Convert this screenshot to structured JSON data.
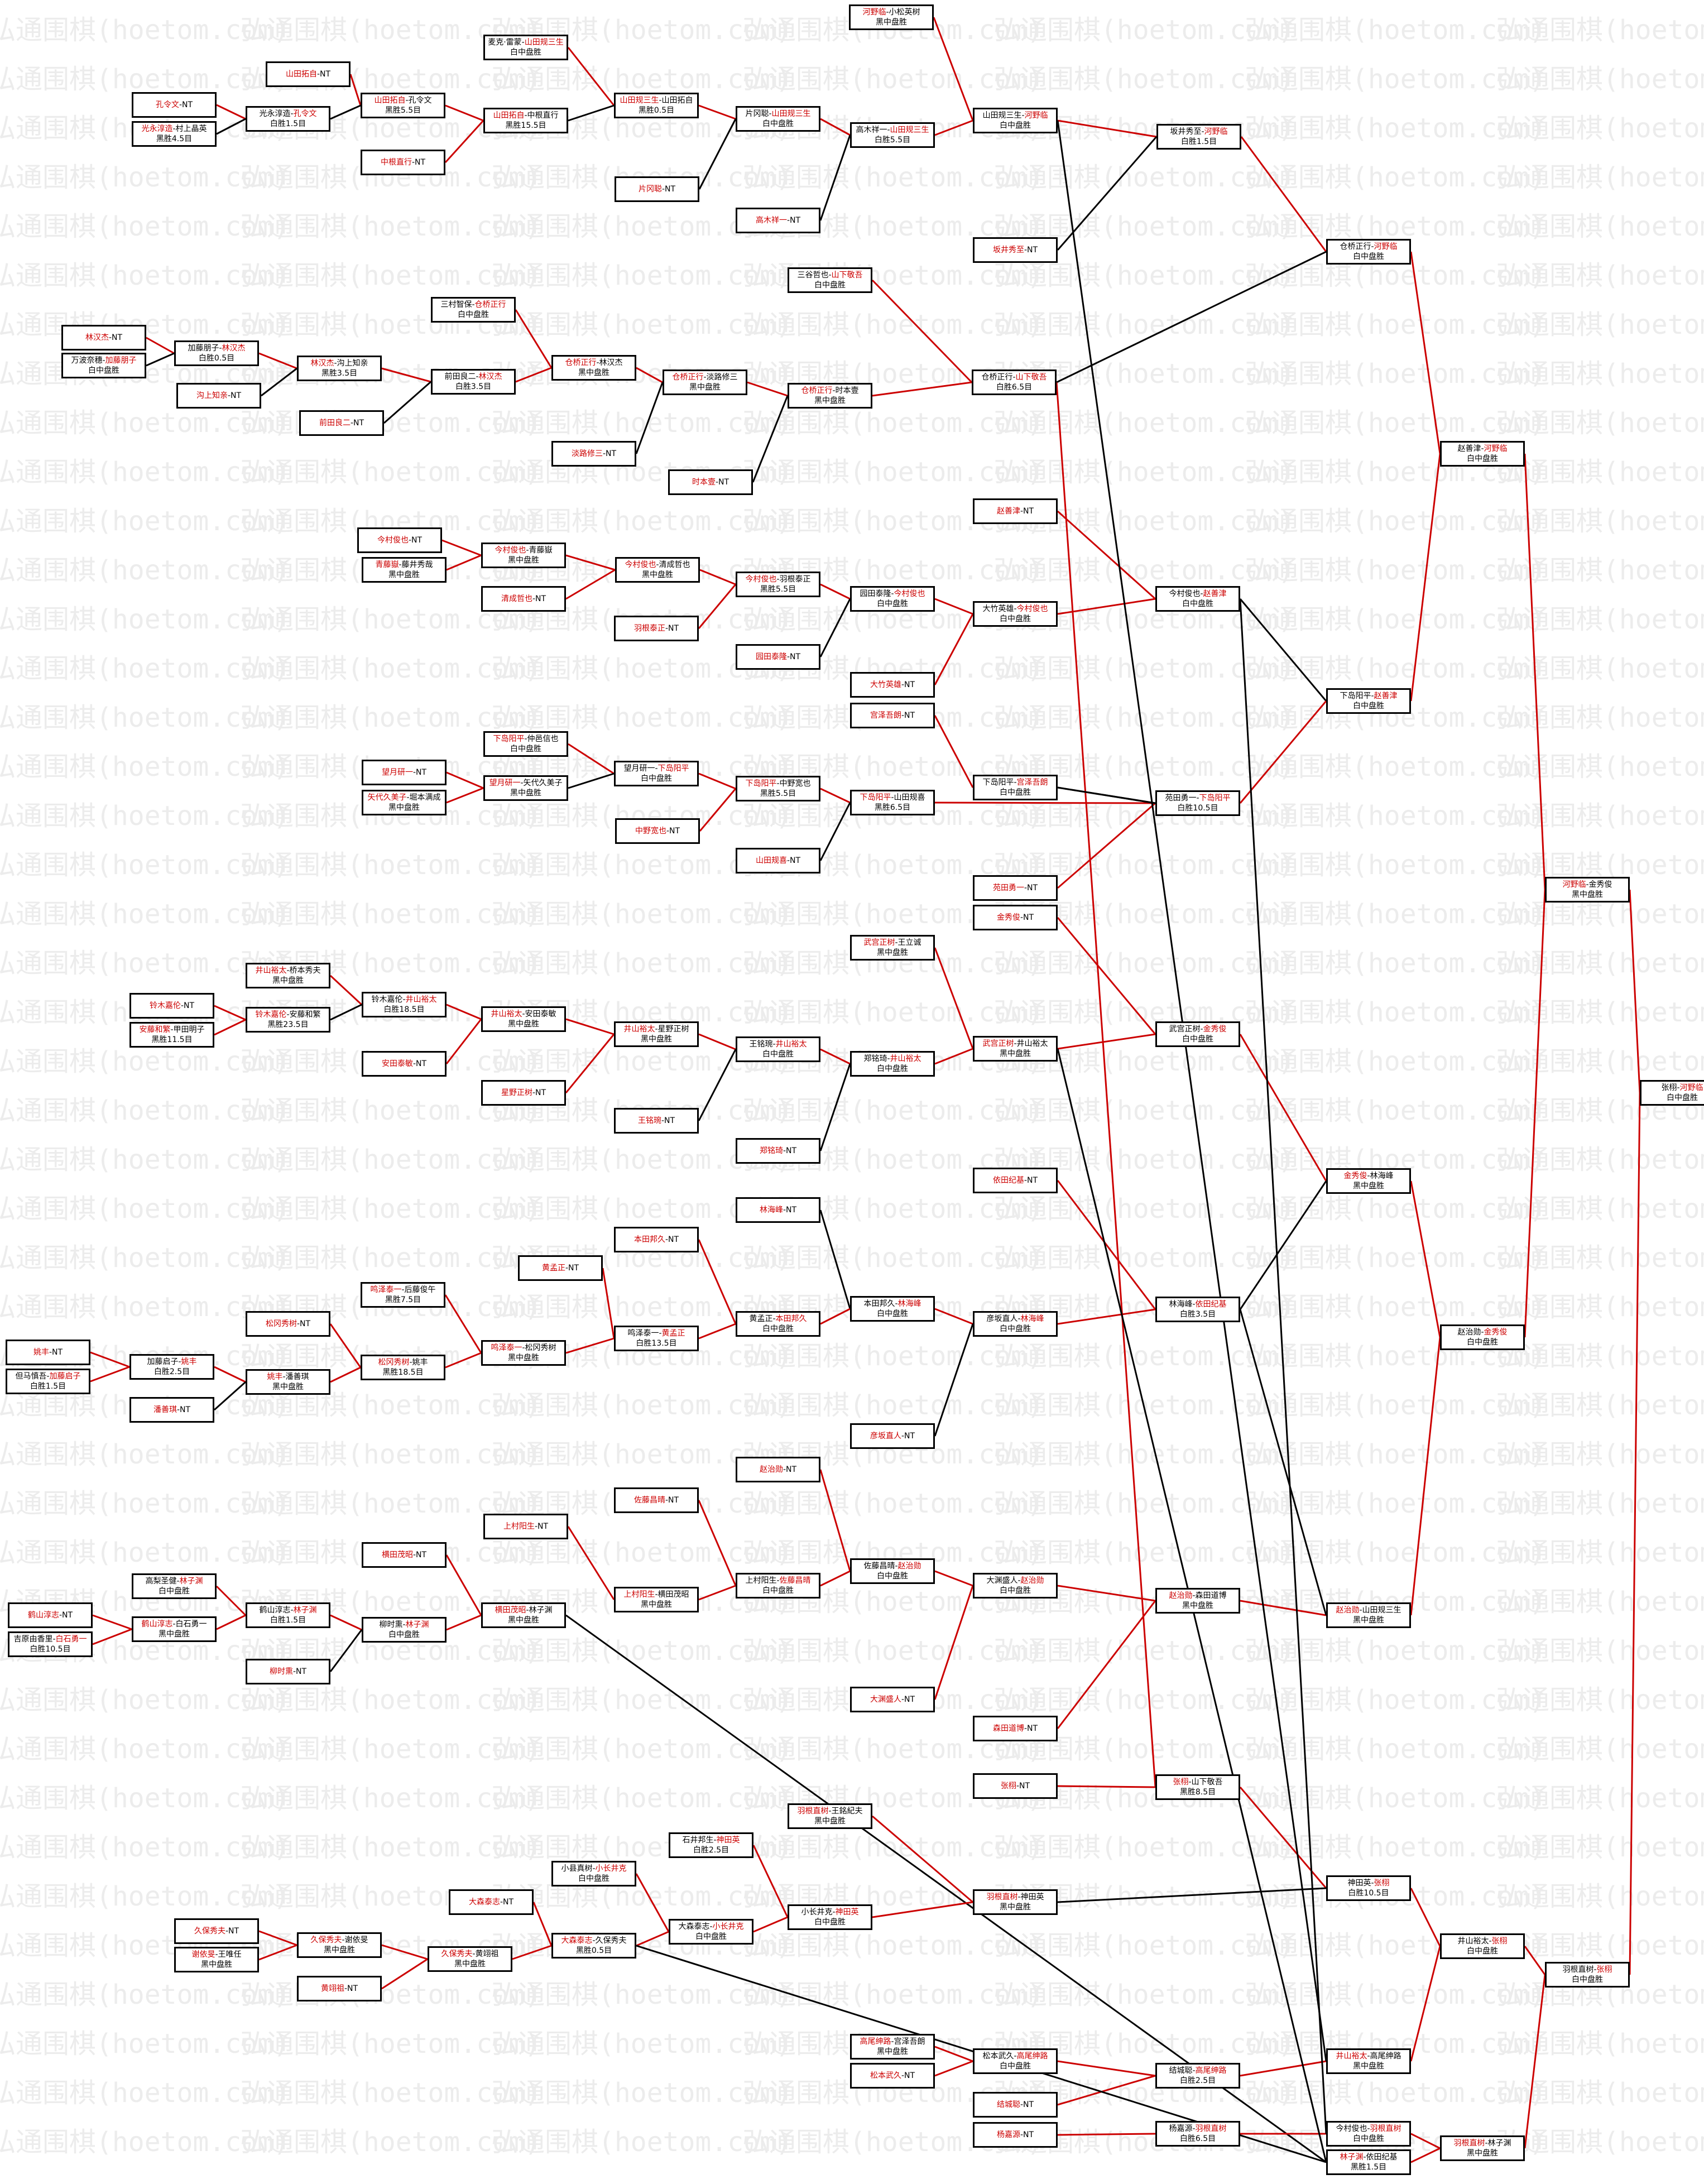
{
  "watermark": "弘通围棋(hoetom.com)",
  "colors": {
    "winner": "#cc0000",
    "line_win": "#cc0000",
    "line_loss": "#000000",
    "border": "#000000"
  },
  "nodes": [
    {
      "id": "a1",
      "l1": "孔令文-NT",
      "hl": "孔令文"
    },
    {
      "id": "a2",
      "l1": "光永淳造-村上晶英",
      "l2": "黑胜4.5目",
      "hl": "光永淳造"
    },
    {
      "id": "a3",
      "l1": "山田拓自-NT",
      "hl": "山田拓自"
    },
    {
      "id": "a4",
      "l1": "光永淳造-孔令文",
      "l2": "白胜1.5目",
      "hl": "孔令文"
    },
    {
      "id": "a5",
      "l1": "中根直行-NT",
      "hl": "中根直行"
    },
    {
      "id": "a6",
      "l1": "山田拓自-孔令文",
      "l2": "黑胜5.5目",
      "hl": "山田拓自"
    },
    {
      "id": "a7",
      "l1": "麦克·雷蒙-山田规三生",
      "l2": "白中盘胜",
      "hl": "山田规三生"
    },
    {
      "id": "a8",
      "l1": "山田拓自-中根直行",
      "l2": "黑胜15.5目",
      "hl": "山田拓自"
    },
    {
      "id": "a9",
      "l1": "山田规三生-山田拓自",
      "l2": "黑胜0.5目",
      "hl": "山田规三生"
    },
    {
      "id": "a10",
      "l1": "片冈聪-NT",
      "hl": "片冈聪"
    },
    {
      "id": "a11",
      "l1": "片冈聪-山田规三生",
      "l2": "白中盘胜",
      "hl": "山田规三生"
    },
    {
      "id": "a12",
      "l1": "高木祥一-NT",
      "hl": "高木祥一"
    },
    {
      "id": "a13",
      "l1": "河野临-小松英树",
      "l2": "黑中盘胜",
      "hl": "河野临"
    },
    {
      "id": "a14",
      "l1": "高木祥一-山田规三生",
      "l2": "白胜5.5目",
      "hl": "山田规三生"
    },
    {
      "id": "a15",
      "l1": "山田规三生-河野临",
      "l2": "白中盘胜",
      "hl": "河野临"
    },
    {
      "id": "a16",
      "l1": "坂井秀至-NT",
      "hl": "坂井秀至"
    },
    {
      "id": "a17",
      "l1": "坂井秀至-河野临",
      "l2": "白胜1.5目",
      "hl": "河野临"
    },
    {
      "id": "b1",
      "l1": "林汉杰-NT",
      "hl": "林汉杰"
    },
    {
      "id": "b2",
      "l1": "万波奈穗-加藤朋子",
      "l2": "白中盘胜",
      "hl": "加藤朋子"
    },
    {
      "id": "b3",
      "l1": "加藤朋子-林汉杰",
      "l2": "白胜0.5目",
      "hl": "林汉杰"
    },
    {
      "id": "b4",
      "l1": "沟上知亲-NT",
      "hl": "沟上知亲"
    },
    {
      "id": "b5",
      "l1": "林汉杰-沟上知亲",
      "l2": "黑胜3.5目",
      "hl": "林汉杰"
    },
    {
      "id": "b6",
      "l1": "前田良二-NT",
      "hl": "前田良二"
    },
    {
      "id": "b7",
      "l1": "三村智保-仓桥正行",
      "l2": "白中盘胜",
      "hl": "仓桥正行"
    },
    {
      "id": "b8",
      "l1": "前田良二-林汉杰",
      "l2": "白胜3.5目",
      "hl": "林汉杰"
    },
    {
      "id": "b9",
      "l1": "仓桥正行-林汉杰",
      "l2": "黑中盘胜",
      "hl": "仓桥正行"
    },
    {
      "id": "b10",
      "l1": "淡路修三-NT",
      "hl": "淡路修三"
    },
    {
      "id": "b11",
      "l1": "仓桥正行-淡路修三",
      "l2": "黑中盘胜",
      "hl": "仓桥正行"
    },
    {
      "id": "b12",
      "l1": "时本壹-NT",
      "hl": "时本壹"
    },
    {
      "id": "b13",
      "l1": "三谷哲也-山下敬吾",
      "l2": "白中盘胜",
      "hl": "山下敬吾"
    },
    {
      "id": "b14",
      "l1": "仓桥正行-时本壹",
      "l2": "黑中盘胜",
      "hl": "仓桥正行"
    },
    {
      "id": "b15",
      "l1": "仓桥正行-山下敬吾",
      "l2": "白胜6.5目",
      "hl": "山下敬吾"
    },
    {
      "id": "b16",
      "l1": "仓桥正行-河野临",
      "l2": "白中盘胜",
      "hl": "河野临"
    },
    {
      "id": "c1",
      "l1": "今村俊也-NT",
      "hl": "今村俊也"
    },
    {
      "id": "c2",
      "l1": "青藤嶽-藤井秀哉",
      "l2": "黑中盘胜",
      "hl": "青藤嶽"
    },
    {
      "id": "c3",
      "l1": "今村俊也-青藤嶽",
      "l2": "黑中盘胜",
      "hl": "今村俊也"
    },
    {
      "id": "c4",
      "l1": "清成哲也-NT",
      "hl": "清成哲也"
    },
    {
      "id": "c5",
      "l1": "今村俊也-清成哲也",
      "l2": "黑中盘胜",
      "hl": "今村俊也"
    },
    {
      "id": "c6",
      "l1": "羽根泰正-NT",
      "hl": "羽根泰正"
    },
    {
      "id": "c7",
      "l1": "今村俊也-羽根泰正",
      "l2": "黑胜5.5目",
      "hl": "今村俊也"
    },
    {
      "id": "c8",
      "l1": "园田泰隆-NT",
      "hl": "园田泰隆"
    },
    {
      "id": "c9",
      "l1": "园田泰隆-今村俊也",
      "l2": "白中盘胜",
      "hl": "今村俊也"
    },
    {
      "id": "c10",
      "l1": "赵善津-NT",
      "hl": "赵善津"
    },
    {
      "id": "c11",
      "l1": "大竹英雄-今村俊也",
      "l2": "白中盘胜",
      "hl": "今村俊也"
    },
    {
      "id": "c12",
      "l1": "大竹英雄-NT",
      "hl": "大竹英雄"
    },
    {
      "id": "c13",
      "l1": "今村俊也-赵善津",
      "l2": "白中盘胜",
      "hl": "赵善津"
    },
    {
      "id": "c14",
      "l1": "宫泽吾朗-NT",
      "hl": "宫泽吾朗"
    },
    {
      "id": "d1",
      "l1": "下岛阳平-仲邑信也",
      "l2": "白中盘胜",
      "hl": "下岛阳平"
    },
    {
      "id": "d2",
      "l1": "望月研一-NT",
      "hl": "望月研一"
    },
    {
      "id": "d3",
      "l1": "矢代久美子-堀本满成",
      "l2": "黑中盘胜",
      "hl": "矢代久美子"
    },
    {
      "id": "d4",
      "l1": "望月研一-矢代久美子",
      "l2": "黑中盘胜",
      "hl": "望月研一"
    },
    {
      "id": "d5",
      "l1": "望月研一-下岛阳平",
      "l2": "白中盘胜",
      "hl": "下岛阳平"
    },
    {
      "id": "d6",
      "l1": "中野宽也-NT",
      "hl": "中野宽也"
    },
    {
      "id": "d7",
      "l1": "下岛阳平-中野宽也",
      "l2": "黑胜5.5目",
      "hl": "下岛阳平"
    },
    {
      "id": "d8",
      "l1": "山田规喜-NT",
      "hl": "山田规喜"
    },
    {
      "id": "d9",
      "l1": "下岛阳平-山田规喜",
      "l2": "黑胜6.5目",
      "hl": "下岛阳平"
    },
    {
      "id": "d10",
      "l1": "下岛阳平-宫泽吾朗",
      "l2": "白中盘胜",
      "hl": "宫泽吾朗"
    },
    {
      "id": "d11",
      "l1": "苑田勇一-NT",
      "hl": "苑田勇一"
    },
    {
      "id": "d12",
      "l1": "苑田勇一-下岛阳平",
      "l2": "白胜10.5目",
      "hl": "下岛阳平"
    },
    {
      "id": "d13",
      "l1": "下岛阳平-赵善津",
      "l2": "白中盘胜",
      "hl": "赵善津"
    },
    {
      "id": "d14",
      "l1": "赵善津-河野临",
      "l2": "白中盘胜",
      "hl": "河野临"
    },
    {
      "id": "d15",
      "l1": "金秀俊-NT",
      "hl": "金秀俊"
    },
    {
      "id": "e1",
      "l1": "井山裕太-桥本秀夫",
      "l2": "黑中盘胜",
      "hl": "井山裕太"
    },
    {
      "id": "e2",
      "l1": "铃木嘉伦-NT",
      "hl": "铃木嘉伦"
    },
    {
      "id": "e3",
      "l1": "安藤和繁-甲田明子",
      "l2": "黑胜11.5目",
      "hl": "安藤和繁"
    },
    {
      "id": "e4",
      "l1": "铃木嘉伦-安藤和繁",
      "l2": "黑胜23.5目",
      "hl": "铃木嘉伦"
    },
    {
      "id": "e5",
      "l1": "铃木嘉伦-井山裕太",
      "l2": "白胜18.5目",
      "hl": "井山裕太"
    },
    {
      "id": "e6",
      "l1": "井山裕太-安田泰敏",
      "l2": "黑中盘胜",
      "hl": "井山裕太"
    },
    {
      "id": "e7",
      "l1": "安田泰敏-NT",
      "hl": "安田泰敏"
    },
    {
      "id": "e8",
      "l1": "井山裕太-星野正树",
      "l2": "黑中盘胜",
      "hl": "井山裕太"
    },
    {
      "id": "e9",
      "l1": "星野正树-NT",
      "hl": "星野正树"
    },
    {
      "id": "e10",
      "l1": "王铭琬-井山裕太",
      "l2": "白中盘胜",
      "hl": "井山裕太"
    },
    {
      "id": "e11",
      "l1": "王铭琬-NT",
      "hl": "王铭琬"
    },
    {
      "id": "e12",
      "l1": "武宫正树-王立诚",
      "l2": "黑中盘胜",
      "hl": "武宫正树"
    },
    {
      "id": "e13",
      "l1": "郑铭琦-井山裕太",
      "l2": "白中盘胜",
      "hl": "井山裕太"
    },
    {
      "id": "e14",
      "l1": "郑铭琦-NT",
      "hl": "郑铭琦"
    },
    {
      "id": "e15",
      "l1": "武宫正树-井山裕太",
      "l2": "黑中盘胜",
      "hl": "武宫正树"
    },
    {
      "id": "e16",
      "l1": "武宫正树-金秀俊",
      "l2": "白中盘胜",
      "hl": "金秀俊"
    },
    {
      "id": "e17",
      "l1": "依田纪基-NT",
      "hl": "依田纪基"
    },
    {
      "id": "e18",
      "l1": "金秀俊-林海峰",
      "l2": "黑中盘胜",
      "hl": "金秀俊"
    },
    {
      "id": "e19",
      "l1": "赵治勋-金秀俊",
      "l2": "白中盘胜",
      "hl": "金秀俊"
    },
    {
      "id": "e20",
      "l1": "河野临-金秀俊",
      "l2": "黑中盘胜",
      "hl": "河野临"
    },
    {
      "id": "e21",
      "l1": "张栩-河野临",
      "l2": "白中盘胜",
      "hl": "河野临"
    },
    {
      "id": "f1",
      "l1": "林海峰-NT",
      "hl": "林海峰"
    },
    {
      "id": "f2",
      "l1": "本田邦久-NT",
      "hl": "本田邦久"
    },
    {
      "id": "f3",
      "l1": "黄孟正-NT",
      "hl": "黄孟正"
    },
    {
      "id": "f4",
      "l1": "鸣泽泰一-后藤俊午",
      "l2": "黑胜7.5目",
      "hl": "鸣泽泰一"
    },
    {
      "id": "f5",
      "l1": "松冈秀树-NT",
      "hl": "松冈秀树"
    },
    {
      "id": "f6",
      "l1": "姚丰-NT",
      "hl": "姚丰"
    },
    {
      "id": "f7",
      "l1": "加藤启子-姚丰",
      "l2": "白胜2.5目",
      "hl": "姚丰"
    },
    {
      "id": "f8",
      "l1": "但马慎吾-加藤启子",
      "l2": "白胜1.5目",
      "hl": "加藤启子"
    },
    {
      "id": "f9",
      "l1": "姚丰-潘善琪",
      "l2": "黑中盘胜",
      "hl": "姚丰"
    },
    {
      "id": "f10",
      "l1": "潘善琪-NT",
      "hl": "潘善琪"
    },
    {
      "id": "f11",
      "l1": "松冈秀树-姚丰",
      "l2": "黑胜18.5目",
      "hl": "松冈秀树"
    },
    {
      "id": "f12",
      "l1": "鸣泽泰一-松冈秀树",
      "l2": "黑中盘胜",
      "hl": "鸣泽泰一"
    },
    {
      "id": "f13",
      "l1": "鸣泽泰一-黄孟正",
      "l2": "白胜13.5目",
      "hl": "黄孟正"
    },
    {
      "id": "f14",
      "l1": "黄孟正-本田邦久",
      "l2": "白中盘胜",
      "hl": "本田邦久"
    },
    {
      "id": "f15",
      "l1": "本田邦久-林海峰",
      "l2": "白中盘胜",
      "hl": "林海峰"
    },
    {
      "id": "f16",
      "l1": "彦坂直人-林海峰",
      "l2": "白中盘胜",
      "hl": "林海峰"
    },
    {
      "id": "f17",
      "l1": "彦坂直人-NT",
      "hl": "彦坂直人"
    },
    {
      "id": "f18",
      "l1": "林海峰-依田纪基",
      "l2": "白胜3.5目",
      "hl": "依田纪基"
    },
    {
      "id": "g1",
      "l1": "赵治勋-NT",
      "hl": "赵治勋"
    },
    {
      "id": "g2",
      "l1": "佐藤昌晴-NT",
      "hl": "佐藤昌晴"
    },
    {
      "id": "g3",
      "l1": "上村阳生-NT",
      "hl": "上村阳生"
    },
    {
      "id": "g4",
      "l1": "横田茂昭-NT",
      "hl": "横田茂昭"
    },
    {
      "id": "g5",
      "l1": "上村阳生-横田茂昭",
      "l2": "黑中盘胜",
      "hl": "上村阳生"
    },
    {
      "id": "g6",
      "l1": "上村阳生-佐藤昌晴",
      "l2": "白中盘胜",
      "hl": "佐藤昌晴"
    },
    {
      "id": "g7",
      "l1": "佐藤昌晴-赵治勋",
      "l2": "白中盘胜",
      "hl": "赵治勋"
    },
    {
      "id": "g8",
      "l1": "大渊盛人-赵治勋",
      "l2": "白中盘胜",
      "hl": "赵治勋"
    },
    {
      "id": "g9",
      "l1": "大渊盛人-NT",
      "hl": "大渊盛人"
    },
    {
      "id": "g10",
      "l1": "森田道博-NT",
      "hl": "森田道博"
    },
    {
      "id": "g11",
      "l1": "赵治勋-森田道博",
      "l2": "黑中盘胜",
      "hl": "赵治勋"
    },
    {
      "id": "g12",
      "l1": "赵治勋-山田规三生",
      "l2": "黑中盘胜",
      "hl": "赵治勋"
    },
    {
      "id": "g13",
      "l1": "高梨圣健-林子渊",
      "l2": "白中盘胜",
      "hl": "林子渊"
    },
    {
      "id": "g14",
      "l1": "鹤山淳志-NT",
      "hl": "鹤山淳志"
    },
    {
      "id": "g15",
      "l1": "吉原由香里-白石勇一",
      "l2": "白胜10.5目",
      "hl": "白石勇一"
    },
    {
      "id": "g16",
      "l1": "鹤山淳志-白石勇一",
      "l2": "黑中盘胜",
      "hl": "鹤山淳志"
    },
    {
      "id": "g17",
      "l1": "鹤山淳志-林子渊",
      "l2": "白胜1.5目",
      "hl": "林子渊"
    },
    {
      "id": "g18",
      "l1": "柳时熏-NT",
      "hl": "柳时熏"
    },
    {
      "id": "g19",
      "l1": "柳时熏-林子渊",
      "l2": "白中盘胜",
      "hl": "林子渊"
    },
    {
      "id": "g20",
      "l1": "横田茂昭-林子渊",
      "l2": "黑中盘胜",
      "hl": "横田茂昭"
    },
    {
      "id": "h1",
      "l1": "张栩-NT",
      "hl": "张栩"
    },
    {
      "id": "h2",
      "l1": "张栩-山下敬吾",
      "l2": "黑胜8.5目",
      "hl": "张栩"
    },
    {
      "id": "h3",
      "l1": "羽根直树-王銘紀夫",
      "l2": "黑中盘胜",
      "hl": "羽根直树"
    },
    {
      "id": "h4",
      "l1": "石井邦生-神田英",
      "l2": "白胜2.5目",
      "hl": "神田英"
    },
    {
      "id": "h5",
      "l1": "小县真树-小长井克",
      "l2": "白中盘胜",
      "hl": "小长井克"
    },
    {
      "id": "h6",
      "l1": "大森泰志-NT",
      "hl": "大森泰志"
    },
    {
      "id": "h7",
      "l1": "大森泰志-久保秀夫",
      "l2": "黑胜0.5目",
      "hl": "大森泰志"
    },
    {
      "id": "h8",
      "l1": "大森泰志-小长井克",
      "l2": "白中盘胜",
      "hl": "小长井克"
    },
    {
      "id": "h9",
      "l1": "小长井克-神田英",
      "l2": "白中盘胜",
      "hl": "神田英"
    },
    {
      "id": "h10",
      "l1": "羽根直树-神田英",
      "l2": "黑中盘胜",
      "hl": "羽根直树"
    },
    {
      "id": "h11",
      "l1": "神田英-张栩",
      "l2": "白胜10.5目",
      "hl": "张栩"
    },
    {
      "id": "h12",
      "l1": "井山裕太-张栩",
      "l2": "白中盘胜",
      "hl": "张栩"
    },
    {
      "id": "h13",
      "l1": "羽根直树-张栩",
      "l2": "白中盘胜",
      "hl": "张栩"
    },
    {
      "id": "h14",
      "l1": "久保秀夫-NT",
      "hl": "久保秀夫"
    },
    {
      "id": "h15",
      "l1": "谢依旻-王唯任",
      "l2": "黑中盘胜",
      "hl": "谢依旻"
    },
    {
      "id": "h16",
      "l1": "久保秀夫-谢依旻",
      "l2": "黑中盘胜",
      "hl": "久保秀夫"
    },
    {
      "id": "h17",
      "l1": "黄翊祖-NT",
      "hl": "黄翊祖"
    },
    {
      "id": "h18",
      "l1": "久保秀夫-黄翊祖",
      "l2": "黑中盘胜",
      "hl": "久保秀夫"
    },
    {
      "id": "i1",
      "l1": "高尾绅路-宫泽吾朗",
      "l2": "黑中盘胜",
      "hl": "高尾绅路"
    },
    {
      "id": "i2",
      "l1": "松本武久-NT",
      "hl": "松本武久"
    },
    {
      "id": "i3",
      "l1": "松本武久-高尾绅路",
      "l2": "白中盘胜",
      "hl": "高尾绅路"
    },
    {
      "id": "i4",
      "l1": "结城聪-NT",
      "hl": "结城聪"
    },
    {
      "id": "i5",
      "l1": "结城聪-高尾绅路",
      "l2": "白胜2.5目",
      "hl": "高尾绅路"
    },
    {
      "id": "i6",
      "l1": "井山裕太-高尾绅路",
      "l2": "黑中盘胜",
      "hl": "井山裕太"
    },
    {
      "id": "i7",
      "l1": "杨嘉源-NT",
      "hl": "杨嘉源"
    },
    {
      "id": "i8",
      "l1": "杨嘉源-羽根直树",
      "l2": "白胜6.5目",
      "hl": "羽根直树"
    },
    {
      "id": "i9",
      "l1": "今村俊也-羽根直树",
      "l2": "白中盘胜",
      "hl": "羽根直树"
    },
    {
      "id": "i10",
      "l1": "林子渊-依田纪基",
      "l2": "黑胜1.5目",
      "hl": "林子渊"
    },
    {
      "id": "i11",
      "l1": "羽根直树-林子渊",
      "l2": "黑中盘胜",
      "hl": "羽根直树"
    }
  ]
}
